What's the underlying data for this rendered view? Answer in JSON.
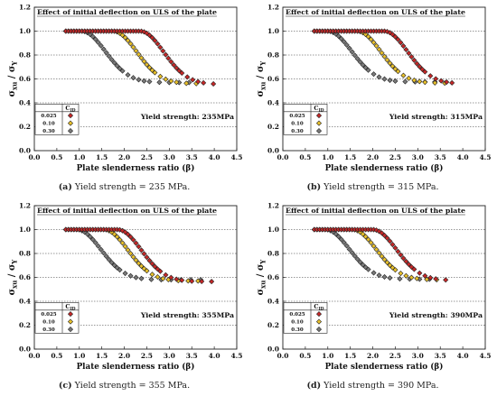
{
  "legend_header": "C",
  "legend_header_sub": "ID",
  "chart_data": [
    {
      "type": "scatter",
      "title": "Effect of initial deflection on ULS of the plate",
      "xlabel": "Plate slenderness ratio (β)",
      "ylabel": "σxu / σY",
      "ylabel_main": "σ",
      "ylabel_sub1": "xu",
      "ylabel_sep": " / σ",
      "ylabel_sub2": "Y",
      "annotation": "Yield strength: 235MPa",
      "caption_letter": "(a)",
      "caption_text": " Yield strength = 235 MPa.",
      "xlim": [
        0.0,
        4.5
      ],
      "ylim": [
        0.0,
        1.2
      ],
      "xticks": [
        "0.0",
        "0.5",
        "1.0",
        "1.5",
        "2.0",
        "2.5",
        "3.0",
        "3.5",
        "4.0",
        "4.5"
      ],
      "yticks": [
        "0.0",
        "0.2",
        "0.4",
        "0.6",
        "0.8",
        "1.0",
        "1.2"
      ],
      "legend_placement": "bottom-left",
      "series": [
        {
          "name": "0.025",
          "color": "#c62828",
          "peak": 2.35,
          "end": 0.555,
          "xmax": 4.0
        },
        {
          "name": "0.10",
          "color": "#e8c02a",
          "peak": 1.75,
          "end": 0.56,
          "xmax": 3.8
        },
        {
          "name": "0.30",
          "color": "#7a7a7a",
          "peak": 1.05,
          "end": 0.57,
          "xmax": 3.6
        }
      ]
    },
    {
      "type": "scatter",
      "title": "Effect of initial deflection on ULS of the plate",
      "xlabel": "Plate slenderness ratio (β)",
      "ylabel": "σxu / σY",
      "ylabel_main": "σ",
      "ylabel_sub1": "xu",
      "ylabel_sep": " / σ",
      "ylabel_sub2": "Y",
      "annotation": "Yield strength: 315MPa",
      "caption_letter": "(b)",
      "caption_text": " Yield strength = 315 MPa.",
      "xlim": [
        0.0,
        4.5
      ],
      "ylim": [
        0.0,
        1.2
      ],
      "xticks": [
        "0.0",
        "0.5",
        "1.0",
        "1.5",
        "2.0",
        "2.5",
        "3.0",
        "3.5",
        "4.0",
        "4.5"
      ],
      "yticks": [
        "0.0",
        "0.2",
        "0.4",
        "0.6",
        "0.8",
        "1.0",
        "1.2"
      ],
      "legend_placement": "bottom-left",
      "series": [
        {
          "name": "0.025",
          "color": "#c62828",
          "peak": 2.25,
          "end": 0.56,
          "xmax": 3.85
        },
        {
          "name": "0.10",
          "color": "#e8c02a",
          "peak": 1.65,
          "end": 0.565,
          "xmax": 3.65
        },
        {
          "name": "0.30",
          "color": "#7a7a7a",
          "peak": 1.0,
          "end": 0.575,
          "xmax": 3.45
        }
      ]
    },
    {
      "type": "scatter",
      "title": "Effect of initial deflection on ULS of the plate",
      "xlabel": "Plate slenderness ratio (β)",
      "ylabel": "σxu / σY",
      "ylabel_main": "σ",
      "ylabel_sub1": "xu",
      "ylabel_sep": " / σ",
      "ylabel_sub2": "Y",
      "annotation": "Yield strength: 355MPa",
      "caption_letter": "(c)",
      "caption_text": " Yield strength = 355 MPa.",
      "xlim": [
        0.0,
        4.5
      ],
      "ylim": [
        0.0,
        1.2
      ],
      "xticks": [
        "0.0",
        "0.5",
        "1.0",
        "1.5",
        "2.0",
        "2.5",
        "3.0",
        "3.5",
        "4.0",
        "4.5"
      ],
      "yticks": [
        "0.0",
        "0.2",
        "0.4",
        "0.6",
        "0.8",
        "1.0",
        "1.2"
      ],
      "legend_placement": "bottom-left",
      "series": [
        {
          "name": "0.025",
          "color": "#c62828",
          "peak": 1.85,
          "end": 0.565,
          "xmax": 4.05
        },
        {
          "name": "0.10",
          "color": "#e8c02a",
          "peak": 1.55,
          "end": 0.57,
          "xmax": 3.85
        },
        {
          "name": "0.30",
          "color": "#7a7a7a",
          "peak": 0.95,
          "end": 0.58,
          "xmax": 3.7
        }
      ]
    },
    {
      "type": "scatter",
      "title": "Effect of initial deflection on ULS of the plate",
      "xlabel": "Plate slenderness ratio (β)",
      "ylabel": "σxu / σY",
      "ylabel_main": "σ",
      "ylabel_sub1": "xu",
      "ylabel_sep": " / σ",
      "ylabel_sub2": "Y",
      "annotation": "Yield strength: 390MPa",
      "caption_letter": "(d)",
      "caption_text": " Yield strength = 390 MPa.",
      "xlim": [
        0.0,
        4.5
      ],
      "ylim": [
        0.0,
        1.2
      ],
      "xticks": [
        "0.0",
        "0.5",
        "1.0",
        "1.5",
        "2.0",
        "2.5",
        "3.0",
        "3.5",
        "4.0",
        "4.5"
      ],
      "yticks": [
        "0.0",
        "0.2",
        "0.4",
        "0.6",
        "0.8",
        "1.0",
        "1.2"
      ],
      "legend_placement": "bottom-left",
      "series": [
        {
          "name": "0.025",
          "color": "#c62828",
          "peak": 2.0,
          "end": 0.575,
          "xmax": 3.8
        },
        {
          "name": "0.10",
          "color": "#e8c02a",
          "peak": 1.55,
          "end": 0.58,
          "xmax": 3.6
        },
        {
          "name": "0.30",
          "color": "#7a7a7a",
          "peak": 0.95,
          "end": 0.585,
          "xmax": 3.45
        }
      ]
    }
  ]
}
